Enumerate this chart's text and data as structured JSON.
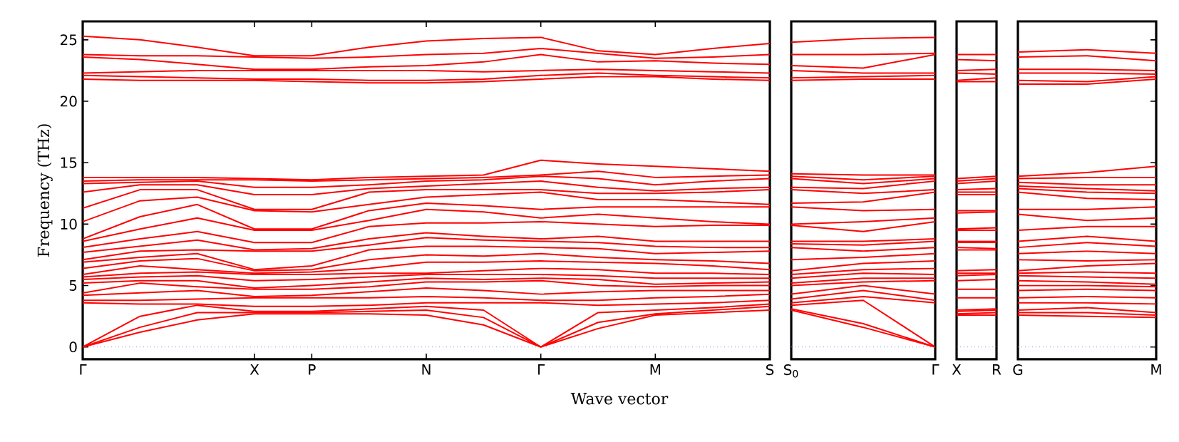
{
  "chart_data": [
    {
      "type": "line",
      "xlabel": "Wave vector",
      "ylabel": "Frequency (THz)",
      "categories": [
        "Γ",
        null,
        null,
        "X",
        "P",
        null,
        "N",
        null,
        "Γ",
        null,
        "M",
        null,
        "S"
      ],
      "ylim": [
        -1,
        26.5
      ],
      "yticks": [
        0,
        5,
        10,
        15,
        20,
        25
      ],
      "ref_lines": [
        {
          "axis": "y",
          "value": 0,
          "color": "#8080ff",
          "line_style": "dotted"
        }
      ],
      "series": [
        {
          "color": "#ff0000",
          "values": [
            0,
            1.2,
            2.2,
            2.7,
            2.7,
            2.7,
            2.6,
            1.8,
            0,
            1.5,
            2.6,
            2.8,
            3.0
          ]
        },
        {
          "color": "#ff0000",
          "values": [
            0,
            1.6,
            2.8,
            2.8,
            2.8,
            2.9,
            3.0,
            2.4,
            0,
            2.0,
            2.7,
            3.0,
            3.3
          ]
        },
        {
          "color": "#ff0000",
          "values": [
            0,
            2.5,
            3.4,
            2.9,
            2.9,
            3.1,
            3.3,
            3.0,
            0,
            2.8,
            3.0,
            3.2,
            3.5
          ]
        },
        {
          "color": "#ff0000",
          "values": [
            3.6,
            3.5,
            3.5,
            3.3,
            3.3,
            3.4,
            3.6,
            3.6,
            3.6,
            3.4,
            3.5,
            3.6,
            3.8
          ]
        },
        {
          "color": "#ff0000",
          "values": [
            3.8,
            3.8,
            3.9,
            4.0,
            4.0,
            4.0,
            4.1,
            4.0,
            3.8,
            3.8,
            4.0,
            4.1,
            4.3
          ]
        },
        {
          "color": "#ff0000",
          "values": [
            4.2,
            4.4,
            4.6,
            4.1,
            4.2,
            4.5,
            4.8,
            4.6,
            4.3,
            4.5,
            4.6,
            4.6,
            4.6
          ]
        },
        {
          "color": "#ff0000",
          "values": [
            4.4,
            5.2,
            4.9,
            4.7,
            4.7,
            4.9,
            5.3,
            5.3,
            5.4,
            5.0,
            4.9,
            5.0,
            5.0
          ]
        },
        {
          "color": "#ff0000",
          "values": [
            5.2,
            5.4,
            5.4,
            4.8,
            5.0,
            5.3,
            5.6,
            5.5,
            5.6,
            5.5,
            5.1,
            5.2,
            5.3
          ]
        },
        {
          "color": "#ff0000",
          "values": [
            5.5,
            5.7,
            5.8,
            5.4,
            5.5,
            5.7,
            5.9,
            5.9,
            5.9,
            5.8,
            5.6,
            5.6,
            5.6
          ]
        },
        {
          "color": "#ff0000",
          "values": [
            5.7,
            6.0,
            6.1,
            5.9,
            5.9,
            6.0,
            6.0,
            6.2,
            6.4,
            6.3,
            6.0,
            6.0,
            5.9
          ]
        },
        {
          "color": "#ff0000",
          "values": [
            5.9,
            6.6,
            6.3,
            6.0,
            6.1,
            6.4,
            6.9,
            6.9,
            7.0,
            6.9,
            6.8,
            6.6,
            6.3
          ]
        },
        {
          "color": "#ff0000",
          "values": [
            6.4,
            7.0,
            7.2,
            6.2,
            6.3,
            7.1,
            7.5,
            7.4,
            7.6,
            7.3,
            7.1,
            7.0,
            6.8
          ]
        },
        {
          "color": "#ff0000",
          "values": [
            6.9,
            7.3,
            7.6,
            6.3,
            6.6,
            7.9,
            8.2,
            8.2,
            8.1,
            8.0,
            7.6,
            7.7,
            7.8
          ]
        },
        {
          "color": "#ff0000",
          "values": [
            7.1,
            7.8,
            7.9,
            7.8,
            7.8,
            8.3,
            8.9,
            8.7,
            8.6,
            8.5,
            8.2,
            8.1,
            8.1
          ]
        },
        {
          "color": "#ff0000",
          "values": [
            7.7,
            8.2,
            8.7,
            7.9,
            8.0,
            8.8,
            9.3,
            9.0,
            8.8,
            9.0,
            8.6,
            8.6,
            8.6
          ]
        },
        {
          "color": "#ff0000",
          "values": [
            8.1,
            8.8,
            9.4,
            8.5,
            8.5,
            9.8,
            10.1,
            10.1,
            10.2,
            10.0,
            9.8,
            9.9,
            9.9
          ]
        },
        {
          "color": "#ff0000",
          "values": [
            8.6,
            9.6,
            10.5,
            9.5,
            9.5,
            10.3,
            11.2,
            11.0,
            10.5,
            10.8,
            10.5,
            10.2,
            10.0
          ]
        },
        {
          "color": "#ff0000",
          "values": [
            8.8,
            10.6,
            11.6,
            9.6,
            9.6,
            11.1,
            11.7,
            11.5,
            11.2,
            11.4,
            11.4,
            11.4,
            11.4
          ]
        },
        {
          "color": "#ff0000",
          "values": [
            10.2,
            11.9,
            12.2,
            11.1,
            11.0,
            11.6,
            12.2,
            12.4,
            12.6,
            12.0,
            12.0,
            11.8,
            11.6
          ]
        },
        {
          "color": "#ff0000",
          "values": [
            11.3,
            12.8,
            12.8,
            11.2,
            11.2,
            12.6,
            12.8,
            12.8,
            12.8,
            12.5,
            12.5,
            12.6,
            12.8
          ]
        },
        {
          "color": "#ff0000",
          "values": [
            12.6,
            13.2,
            13.2,
            12.4,
            12.4,
            12.9,
            13.1,
            13.3,
            13.5,
            13.0,
            12.7,
            12.9,
            13.0
          ]
        },
        {
          "color": "#ff0000",
          "values": [
            13.3,
            13.4,
            13.5,
            13.0,
            13.0,
            13.2,
            13.5,
            13.6,
            13.9,
            13.7,
            13.2,
            13.5,
            13.7
          ]
        },
        {
          "color": "#ff0000",
          "values": [
            13.5,
            13.6,
            13.6,
            13.6,
            13.5,
            13.6,
            13.7,
            13.8,
            14.0,
            14.3,
            13.8,
            13.9,
            14.0
          ]
        },
        {
          "color": "#ff0000",
          "values": [
            13.8,
            13.8,
            13.8,
            13.7,
            13.6,
            13.8,
            13.9,
            14.0,
            15.2,
            14.9,
            14.7,
            14.5,
            14.3
          ]
        },
        {
          "color": "#ff0000",
          "values": [
            21.8,
            21.7,
            21.7,
            21.7,
            21.6,
            21.5,
            21.5,
            21.6,
            21.8,
            22.0,
            22.0,
            21.8,
            21.7
          ]
        },
        {
          "color": "#ff0000",
          "values": [
            22.1,
            22.0,
            21.9,
            21.8,
            21.8,
            21.7,
            21.7,
            21.8,
            22.1,
            22.3,
            22.1,
            22.0,
            21.9
          ]
        },
        {
          "color": "#ff0000",
          "values": [
            22.3,
            22.4,
            22.5,
            22.5,
            22.5,
            22.5,
            22.5,
            22.4,
            22.5,
            22.6,
            22.5,
            22.4,
            22.3
          ]
        },
        {
          "color": "#ff0000",
          "values": [
            23.6,
            23.4,
            23.0,
            22.6,
            22.6,
            22.8,
            22.9,
            23.2,
            23.8,
            23.2,
            23.3,
            23.1,
            23.0
          ]
        },
        {
          "color": "#ff0000",
          "values": [
            23.8,
            23.7,
            23.7,
            23.6,
            23.5,
            23.6,
            23.8,
            23.9,
            24.3,
            23.9,
            23.5,
            23.6,
            23.8
          ]
        },
        {
          "color": "#ff0000",
          "values": [
            25.3,
            25.0,
            24.4,
            23.7,
            23.7,
            24.4,
            24.9,
            25.1,
            25.2,
            24.1,
            23.8,
            24.3,
            24.7
          ]
        }
      ]
    },
    {
      "type": "line",
      "categories": [
        "S$_{0}$",
        null,
        "Γ"
      ],
      "ylim": [
        -1,
        26.5
      ],
      "tick_labels": "x",
      "ref_lines": [
        {
          "axis": "y",
          "value": 0,
          "color": "#8080ff",
          "line_style": "dotted"
        }
      ],
      "series": [
        {
          "color": "#ff0000",
          "values": [
            3.0,
            1.6,
            0
          ]
        },
        {
          "color": "#ff0000",
          "values": [
            3.1,
            1.9,
            0
          ]
        },
        {
          "color": "#ff0000",
          "values": [
            3.4,
            3.8,
            0
          ]
        },
        {
          "color": "#ff0000",
          "values": [
            3.6,
            4.1,
            3.6
          ]
        },
        {
          "color": "#ff0000",
          "values": [
            3.9,
            4.6,
            3.8
          ]
        },
        {
          "color": "#ff0000",
          "values": [
            4.3,
            5.0,
            4.3
          ]
        },
        {
          "color": "#ff0000",
          "values": [
            5.0,
            5.3,
            5.4
          ]
        },
        {
          "color": "#ff0000",
          "values": [
            5.2,
            5.6,
            5.6
          ]
        },
        {
          "color": "#ff0000",
          "values": [
            5.6,
            6.0,
            5.9
          ]
        },
        {
          "color": "#ff0000",
          "values": [
            5.9,
            6.3,
            6.4
          ]
        },
        {
          "color": "#ff0000",
          "values": [
            6.2,
            6.8,
            7.0
          ]
        },
        {
          "color": "#ff0000",
          "values": [
            7.1,
            7.3,
            7.6
          ]
        },
        {
          "color": "#ff0000",
          "values": [
            8.1,
            7.8,
            8.1
          ]
        },
        {
          "color": "#ff0000",
          "values": [
            8.4,
            8.3,
            8.6
          ]
        },
        {
          "color": "#ff0000",
          "values": [
            8.6,
            8.6,
            8.8
          ]
        },
        {
          "color": "#ff0000",
          "values": [
            9.9,
            9.4,
            10.2
          ]
        },
        {
          "color": "#ff0000",
          "values": [
            10.0,
            10.2,
            10.5
          ]
        },
        {
          "color": "#ff0000",
          "values": [
            11.4,
            11.1,
            11.2
          ]
        },
        {
          "color": "#ff0000",
          "values": [
            11.7,
            11.8,
            12.6
          ]
        },
        {
          "color": "#ff0000",
          "values": [
            12.8,
            12.5,
            12.8
          ]
        },
        {
          "color": "#ff0000",
          "values": [
            13.0,
            12.9,
            13.5
          ]
        },
        {
          "color": "#ff0000",
          "values": [
            13.7,
            13.3,
            13.7
          ]
        },
        {
          "color": "#ff0000",
          "values": [
            13.9,
            13.6,
            13.9
          ]
        },
        {
          "color": "#ff0000",
          "values": [
            14.1,
            14.0,
            14.0
          ]
        },
        {
          "color": "#ff0000",
          "values": [
            21.7,
            21.8,
            21.8
          ]
        },
        {
          "color": "#ff0000",
          "values": [
            21.9,
            22.0,
            22.1
          ]
        },
        {
          "color": "#ff0000",
          "values": [
            22.5,
            22.3,
            22.3
          ]
        },
        {
          "color": "#ff0000",
          "values": [
            22.9,
            22.7,
            23.8
          ]
        },
        {
          "color": "#ff0000",
          "values": [
            23.8,
            23.8,
            23.9
          ]
        },
        {
          "color": "#ff0000",
          "values": [
            24.8,
            25.1,
            25.2
          ]
        }
      ]
    },
    {
      "type": "line",
      "categories": [
        "X",
        "R"
      ],
      "ylim": [
        -1,
        26.5
      ],
      "tick_labels": "x",
      "ref_lines": [
        {
          "axis": "y",
          "value": 0,
          "color": "#8080ff",
          "line_style": "dotted"
        }
      ],
      "series": [
        {
          "color": "#ff0000",
          "values": [
            2.6,
            2.6
          ]
        },
        {
          "color": "#ff0000",
          "values": [
            2.7,
            2.8
          ]
        },
        {
          "color": "#ff0000",
          "values": [
            2.9,
            3.0
          ]
        },
        {
          "color": "#ff0000",
          "values": [
            3.0,
            3.1
          ]
        },
        {
          "color": "#ff0000",
          "values": [
            4.0,
            4.0
          ]
        },
        {
          "color": "#ff0000",
          "values": [
            4.7,
            4.7
          ]
        },
        {
          "color": "#ff0000",
          "values": [
            5.4,
            5.5
          ]
        },
        {
          "color": "#ff0000",
          "values": [
            5.8,
            5.9
          ]
        },
        {
          "color": "#ff0000",
          "values": [
            6.0,
            6.0
          ]
        },
        {
          "color": "#ff0000",
          "values": [
            6.2,
            6.3
          ]
        },
        {
          "color": "#ff0000",
          "values": [
            7.9,
            7.9
          ]
        },
        {
          "color": "#ff0000",
          "values": [
            8.1,
            8.0
          ]
        },
        {
          "color": "#ff0000",
          "values": [
            8.5,
            8.5
          ]
        },
        {
          "color": "#ff0000",
          "values": [
            8.6,
            8.6
          ]
        },
        {
          "color": "#ff0000",
          "values": [
            9.5,
            9.5
          ]
        },
        {
          "color": "#ff0000",
          "values": [
            9.6,
            9.7
          ]
        },
        {
          "color": "#ff0000",
          "values": [
            10.9,
            11.0
          ]
        },
        {
          "color": "#ff0000",
          "values": [
            11.1,
            11.1
          ]
        },
        {
          "color": "#ff0000",
          "values": [
            12.4,
            12.4
          ]
        },
        {
          "color": "#ff0000",
          "values": [
            12.6,
            12.6
          ]
        },
        {
          "color": "#ff0000",
          "values": [
            12.8,
            12.9
          ]
        },
        {
          "color": "#ff0000",
          "values": [
            13.3,
            13.5
          ]
        },
        {
          "color": "#ff0000",
          "values": [
            13.5,
            13.7
          ]
        },
        {
          "color": "#ff0000",
          "values": [
            13.7,
            13.9
          ]
        },
        {
          "color": "#ff0000",
          "values": [
            21.6,
            21.6
          ]
        },
        {
          "color": "#ff0000",
          "values": [
            21.7,
            21.9
          ]
        },
        {
          "color": "#ff0000",
          "values": [
            22.3,
            22.2
          ]
        },
        {
          "color": "#ff0000",
          "values": [
            22.5,
            22.6
          ]
        },
        {
          "color": "#ff0000",
          "values": [
            23.4,
            23.3
          ]
        },
        {
          "color": "#ff0000",
          "values": [
            23.8,
            23.8
          ]
        }
      ]
    },
    {
      "type": "line",
      "categories": [
        "G",
        null,
        "M"
      ],
      "ylim": [
        -1,
        26.5
      ],
      "yticks": [
        0,
        5,
        10,
        15,
        20,
        25
      ],
      "tick_labels": "x",
      "ref_lines": [
        {
          "axis": "y",
          "value": 0,
          "color": "#8080ff",
          "line_style": "dotted"
        }
      ],
      "series": [
        {
          "color": "#ff0000",
          "values": [
            2.6,
            2.5,
            2.4
          ]
        },
        {
          "color": "#ff0000",
          "values": [
            2.8,
            2.8,
            2.6
          ]
        },
        {
          "color": "#ff0000",
          "values": [
            3.0,
            3.2,
            2.8
          ]
        },
        {
          "color": "#ff0000",
          "values": [
            3.6,
            3.6,
            3.5
          ]
        },
        {
          "color": "#ff0000",
          "values": [
            4.0,
            4.1,
            4.0
          ]
        },
        {
          "color": "#ff0000",
          "values": [
            4.6,
            4.7,
            4.6
          ]
        },
        {
          "color": "#ff0000",
          "values": [
            5.0,
            5.0,
            4.9
          ]
        },
        {
          "color": "#ff0000",
          "values": [
            5.4,
            5.3,
            5.1
          ]
        },
        {
          "color": "#ff0000",
          "values": [
            5.8,
            5.7,
            5.6
          ]
        },
        {
          "color": "#ff0000",
          "values": [
            6.0,
            6.1,
            6.0
          ]
        },
        {
          "color": "#ff0000",
          "values": [
            6.2,
            6.6,
            6.8
          ]
        },
        {
          "color": "#ff0000",
          "values": [
            7.1,
            7.0,
            7.1
          ]
        },
        {
          "color": "#ff0000",
          "values": [
            7.6,
            7.8,
            7.6
          ]
        },
        {
          "color": "#ff0000",
          "values": [
            8.1,
            8.5,
            8.2
          ]
        },
        {
          "color": "#ff0000",
          "values": [
            8.6,
            9.0,
            8.6
          ]
        },
        {
          "color": "#ff0000",
          "values": [
            9.5,
            9.8,
            9.8
          ]
        },
        {
          "color": "#ff0000",
          "values": [
            10.8,
            10.3,
            10.5
          ]
        },
        {
          "color": "#ff0000",
          "values": [
            11.2,
            11.2,
            11.4
          ]
        },
        {
          "color": "#ff0000",
          "values": [
            12.6,
            12.1,
            12.0
          ]
        },
        {
          "color": "#ff0000",
          "values": [
            12.9,
            12.6,
            12.5
          ]
        },
        {
          "color": "#ff0000",
          "values": [
            13.1,
            12.9,
            12.7
          ]
        },
        {
          "color": "#ff0000",
          "values": [
            13.4,
            13.2,
            13.2
          ]
        },
        {
          "color": "#ff0000",
          "values": [
            13.7,
            13.8,
            13.8
          ]
        },
        {
          "color": "#ff0000",
          "values": [
            13.9,
            14.2,
            14.7
          ]
        },
        {
          "color": "#ff0000",
          "values": [
            21.4,
            21.4,
            21.8
          ]
        },
        {
          "color": "#ff0000",
          "values": [
            21.7,
            21.6,
            22.0
          ]
        },
        {
          "color": "#ff0000",
          "values": [
            22.3,
            22.3,
            22.2
          ]
        },
        {
          "color": "#ff0000",
          "values": [
            22.6,
            22.6,
            22.5
          ]
        },
        {
          "color": "#ff0000",
          "values": [
            23.6,
            23.7,
            23.3
          ]
        },
        {
          "color": "#ff0000",
          "values": [
            24.0,
            24.2,
            23.9
          ]
        }
      ]
    }
  ]
}
